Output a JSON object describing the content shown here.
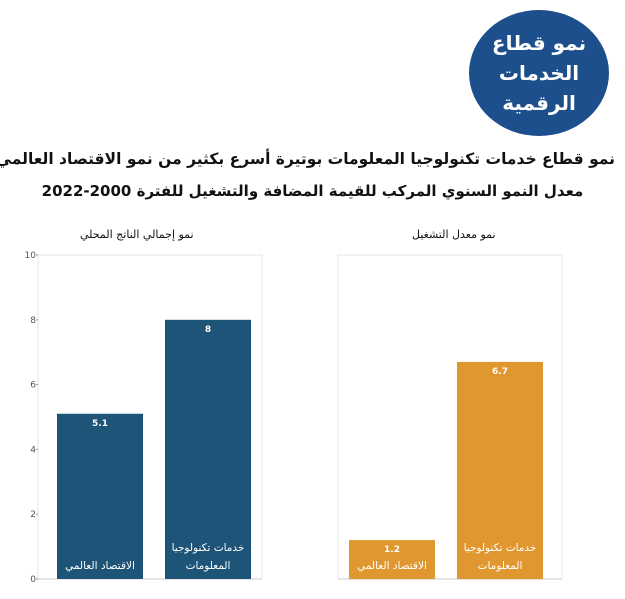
{
  "badge": {
    "lines": [
      "نمو قطاع",
      "الخدمات",
      "الرقمية"
    ]
  },
  "headline": "نمو قطاع خدمات تكنولوجيا المعلومات بوتيرة أسرع بكثير من نمو الاقتصاد العالمي",
  "subhead": "معدل النمو السنوي المركب للقيمة المضافة والتشغيل للفترة 2000-2022",
  "colors": {
    "gdp": "#1e5478",
    "employment": "#e0972f",
    "badge": "#1d4f8c"
  },
  "chart_data": [
    {
      "type": "bar",
      "title": "نمو إجمالي الناتج المحلي",
      "categories": [
        "الاقتصاد العالمي",
        "خدمات تكنولوجيا المعلومات"
      ],
      "values": [
        5.1,
        8
      ],
      "value_labels": [
        "5.1",
        "8"
      ],
      "ylim": [
        0,
        10
      ],
      "yticks": [
        "0",
        "2",
        "4",
        "6",
        "8",
        "10"
      ],
      "color": "#1e5478",
      "grid": false
    },
    {
      "type": "bar",
      "title": "نمو معدل التشغيل",
      "categories": [
        "الاقتصاد العالمي",
        "خدمات تكنولوجيا المعلومات"
      ],
      "values": [
        1.2,
        6.7
      ],
      "value_labels": [
        "1.2",
        "6.7"
      ],
      "ylim": [
        0,
        10
      ],
      "color": "#e0972f",
      "grid": false
    }
  ]
}
